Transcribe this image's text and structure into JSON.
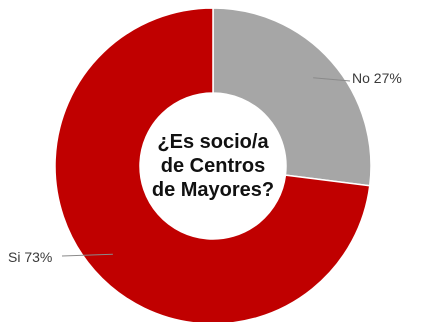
{
  "chart_data": {
    "type": "pie",
    "variant": "donut",
    "center_title": [
      "¿Es socio/a",
      "de Centros",
      "de Mayores?"
    ],
    "categories": [
      "No",
      "Si"
    ],
    "values": [
      27,
      73
    ],
    "unit": "%",
    "labels": [
      "No 27%",
      "Si 73%"
    ],
    "colors": [
      "#a6a6a6",
      "#c00000"
    ],
    "legend": "none"
  }
}
